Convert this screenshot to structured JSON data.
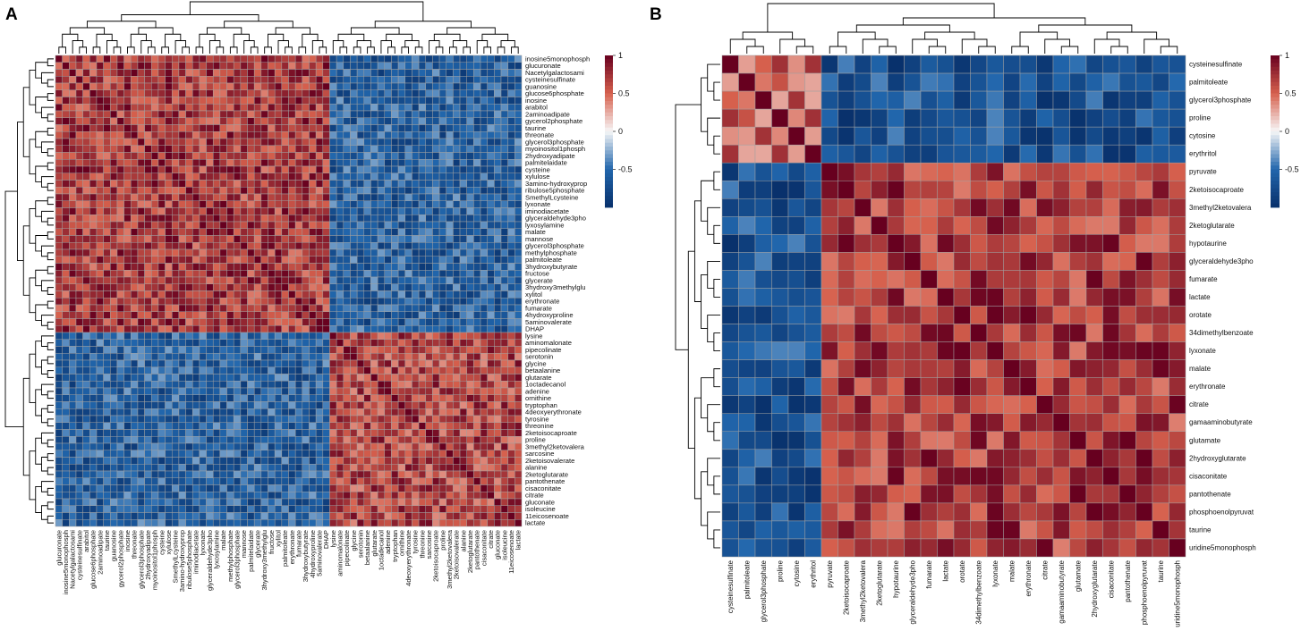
{
  "colors": {
    "low": "#08306b",
    "mid_low": "#2166ac",
    "mid": "#f7f7f7",
    "mid_high": "#d6604d",
    "high": "#67001f",
    "grid": "#a0a0a0"
  },
  "chart_data": [
    {
      "panel_label": "A",
      "type": "heatmap",
      "title": "",
      "legend_ticks": [
        "1",
        "0.5",
        "0",
        "-0.5"
      ],
      "value_range": [
        -1,
        1
      ],
      "row_labels": [
        "inosine5monophosph",
        "glucuronate",
        "Nacetylgalactosami",
        "cysteinesulfinate",
        "guanosine",
        "glucose6phosphate",
        "inosine",
        "arabitol",
        "2aminoadipate",
        "gycerol2phosphate",
        "taurine",
        "threonate",
        "glycerol3phosphate",
        "myoinositol1phosph",
        "2hydroxyadipate",
        "palmitelaidate",
        "cysteine",
        "xylulose",
        "3amino-hydroxyprop",
        "ribulose5phosphate",
        "SmethylLcysteine",
        "lyxonate",
        "iminodiacetate",
        "glyceraldehyde3pho",
        "lyxosylamine",
        "malate",
        "mannose",
        "glycerol3phosphate",
        "methylphosphate",
        "palmitoleate",
        "3hydroxybutyrate",
        "fructose",
        "glycerate",
        "3hydroxy3methylglu",
        "xylitol",
        "erythronate",
        "fumarate",
        "4hydroxyproline",
        "5aminovalerate",
        "DHAP",
        "lysine",
        "aminomalonate",
        "pipecolinate",
        "serotonin",
        "glycine",
        "betaalanine",
        "glutarate",
        "1octadecanol",
        "adenine",
        "ornithine",
        "tryptophan",
        "4deoxyerythronate",
        "tyrosine",
        "threonine",
        "2ketoisocaproate",
        "proline",
        "3methyl2ketovalera",
        "sarcosine",
        "2ketoisovalerate",
        "alanine",
        "2ketoglutarate",
        "pantothenate",
        "cisaconitate",
        "citrate",
        "gluconate",
        "isoleucine",
        "11eicosenoate",
        "lactate"
      ],
      "col_labels": [
        "glucuronate",
        "inosine5monophosph",
        "Nacetylgalactosami",
        "cysteinesulfinate",
        "arabitol",
        "glucose6phosphate",
        "2aminoadipate",
        "taurine",
        "guanosine",
        "gycerol2phosphate",
        "inosine",
        "threonate",
        "glycerol3phosphate",
        "2hydroxyadipate",
        "myoinositol1phosph",
        "cysteine",
        "xylulose",
        "SmethylLcysteine",
        "3amino-hydroxyprop",
        "ribulose5phosphate",
        "iminodiacetate",
        "lyxonate",
        "glyceraldehyde3pho",
        "lyxosylamine",
        "malate",
        "methylphosphate",
        "glycerol3phosphate",
        "mannose",
        "palmitelaidate",
        "glycerate",
        "3hydroxy3methylglu",
        "fructose",
        "xylitol",
        "palmitoleate",
        "erythronate",
        "fumarate",
        "3hydroxybutyrate",
        "4hydroxyproline",
        "5aminovalerate",
        "DHAP",
        "lysine",
        "aminomalonate",
        "pipecolinate",
        "glycine",
        "serotonin",
        "betaalanine",
        "glutarate",
        "1octadecanol",
        "adenine",
        "tryptophan",
        "ornithine",
        "4deoxyerythronate",
        "tyrosine",
        "threonine",
        "sarcosine",
        "2ketoisocaproate",
        "proline",
        "3methyl2ketovalera",
        "2ketoisovalerate",
        "alanine",
        "2ketoglutarate",
        "pantothenate",
        "cisaconitate",
        "citrate",
        "gluconate",
        "isoleucine",
        "11eicosenoate",
        "lactate"
      ],
      "cluster_sizes": [
        40,
        28
      ],
      "cluster_correlations": [
        [
          0.7,
          -0.6
        ],
        [
          -0.6,
          0.65
        ]
      ]
    },
    {
      "panel_label": "B",
      "type": "heatmap",
      "title": "",
      "legend_ticks": [
        "1",
        "0.5",
        "0",
        "-0.5"
      ],
      "value_range": [
        -1,
        1
      ],
      "row_labels": [
        "cysteinesulfinate",
        "palmitoleate",
        "glycerol3phosphate",
        "proline",
        "cytosine",
        "erythritol",
        "pyruvate",
        "2ketoisocaproate",
        "3methyl2ketovalera",
        "2ketoglutarate",
        "hypotaurine",
        "glyceraldehyde3pho",
        "fumarate",
        "lactate",
        "orotate",
        "34dimethylbenzoate",
        "lyxonate",
        "malate",
        "erythronate",
        "citrate",
        "gamaaminobutyrate",
        "glutamate",
        "2hydroxyglutarate",
        "cisaconitate",
        "pantothenate",
        "phosphoenolpyruvat",
        "taurine",
        "uridine5monophosph"
      ],
      "col_labels": [
        "cysteinesulfinate",
        "palmitoleate",
        "glycerol3phosphate",
        "proline",
        "cytosine",
        "erythritol",
        "pyruvate",
        "2ketoisocaproate",
        "3methyl2ketovalera",
        "2ketoglutarate",
        "hypotaurine",
        "glyceraldehyde3pho",
        "fumarate",
        "lactate",
        "orotate",
        "34dimethylbenzoate",
        "lyxonate",
        "malate",
        "erythronate",
        "citrate",
        "gamaaminobutyrate",
        "glutamate",
        "2hydroxyglutarate",
        "cisaconitate",
        "pantothenate",
        "phosphoenolpyruvat",
        "taurine",
        "uridine5monophosph"
      ],
      "cluster_sizes": [
        6,
        22
      ],
      "cluster_correlations": [
        [
          0.55,
          -0.7
        ],
        [
          -0.7,
          0.7
        ]
      ]
    }
  ]
}
